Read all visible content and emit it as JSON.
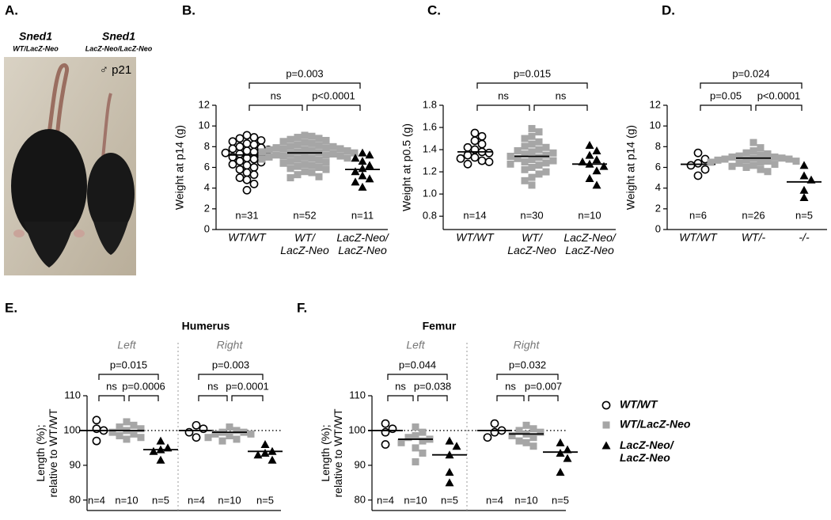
{
  "panel_a": {
    "label": "A.",
    "mice": [
      {
        "gene": "Sned1",
        "genotype": "WT/LacZ-Neo"
      },
      {
        "gene": "Sned1",
        "genotype": "LacZ-Neo/LacZ-Neo"
      }
    ],
    "annotation": "♂ p21"
  },
  "chart_data": [
    {
      "type": "dotplot",
      "panel": "B.",
      "ylabel": "Weight at p14 (g)",
      "ylim": [
        0,
        12
      ],
      "yticks": [
        0,
        2,
        4,
        6,
        8,
        10,
        12
      ],
      "categories": [
        "WT/WT",
        "WT/\nLacZ-Neo",
        "LacZ-Neo/\nLacZ-Neo"
      ],
      "subgroups": [
        {
          "series": [
            {
              "marker": "circle-open",
              "color": "#000000",
              "n_label": "n=31",
              "mean": 7.2,
              "values": [
                9.1,
                8.9,
                8.8,
                8.6,
                8.5,
                8.3,
                8.2,
                8.0,
                7.9,
                7.8,
                7.7,
                7.6,
                7.5,
                7.4,
                7.3,
                7.2,
                7.0,
                6.9,
                6.8,
                6.6,
                6.5,
                6.3,
                6.2,
                6.0,
                5.8,
                5.5,
                5.3,
                5.0,
                4.8,
                4.4,
                3.8
              ]
            },
            {
              "marker": "square",
              "color": "#a6a6a6",
              "n_label": "n=52",
              "mean": 7.4,
              "values": [
                9.1,
                9.0,
                8.9,
                8.8,
                8.7,
                8.6,
                8.5,
                8.4,
                8.3,
                8.2,
                8.1,
                8.0,
                8.0,
                7.9,
                7.9,
                7.8,
                7.8,
                7.7,
                7.7,
                7.6,
                7.6,
                7.5,
                7.5,
                7.4,
                7.4,
                7.3,
                7.3,
                7.2,
                7.2,
                7.1,
                7.1,
                7.0,
                7.0,
                6.9,
                6.9,
                6.8,
                6.8,
                6.7,
                6.6,
                6.5,
                6.4,
                6.3,
                6.2,
                6.1,
                6.0,
                5.9,
                5.8,
                5.6,
                5.5,
                5.3,
                5.1,
                5.0
              ]
            },
            {
              "marker": "triangle",
              "color": "#000000",
              "n_label": "n=11",
              "mean": 5.8,
              "values": [
                7.4,
                7.2,
                6.9,
                6.6,
                6.2,
                5.9,
                5.6,
                5.2,
                4.9,
                4.6,
                4.1
              ]
            }
          ],
          "comparisons": [
            {
              "pair": [
                0,
                1
              ],
              "label": "ns"
            },
            {
              "pair": [
                1,
                2
              ],
              "label": "p<0.0001"
            },
            {
              "pair": [
                0,
                2
              ],
              "label": "p=0.003"
            }
          ]
        }
      ]
    },
    {
      "type": "dotplot",
      "panel": "C.",
      "ylabel": "Weight at p0.5 (g)",
      "ylim": [
        0.68,
        1.8
      ],
      "yticks": [
        0.8,
        {
          "value": 1,
          "label": "1.0"
        },
        1.2,
        1.4,
        1.6,
        1.8
      ],
      "categories": [
        "WT/WT",
        "WT/\nLacZ-Neo",
        "LacZ-Neo/\nLacZ-Neo"
      ],
      "subgroups": [
        {
          "series": [
            {
              "marker": "circle-open",
              "color": "#000000",
              "n_label": "n=14",
              "mean": 1.38,
              "values": [
                1.55,
                1.52,
                1.48,
                1.45,
                1.42,
                1.4,
                1.38,
                1.37,
                1.35,
                1.33,
                1.32,
                1.3,
                1.29,
                1.27
              ]
            },
            {
              "marker": "square",
              "color": "#a6a6a6",
              "n_label": "n=30",
              "mean": 1.34,
              "values": [
                1.59,
                1.56,
                1.52,
                1.5,
                1.47,
                1.45,
                1.43,
                1.42,
                1.4,
                1.39,
                1.38,
                1.37,
                1.36,
                1.35,
                1.34,
                1.33,
                1.32,
                1.31,
                1.3,
                1.29,
                1.28,
                1.27,
                1.26,
                1.24,
                1.22,
                1.2,
                1.18,
                1.15,
                1.12,
                1.08
              ]
            },
            {
              "marker": "triangle",
              "color": "#000000",
              "n_label": "n=10",
              "mean": 1.27,
              "values": [
                1.44,
                1.39,
                1.35,
                1.31,
                1.29,
                1.27,
                1.25,
                1.21,
                1.14,
                1.08
              ]
            }
          ],
          "comparisons": [
            {
              "pair": [
                0,
                1
              ],
              "label": "ns"
            },
            {
              "pair": [
                1,
                2
              ],
              "label": "ns"
            },
            {
              "pair": [
                0,
                2
              ],
              "label": "p=0.015"
            }
          ]
        }
      ]
    },
    {
      "type": "dotplot",
      "panel": "D.",
      "ylabel": "Weight at p14 (g)",
      "ylim": [
        0,
        12
      ],
      "yticks": [
        0,
        2,
        4,
        6,
        8,
        10,
        12
      ],
      "categories": [
        "WT/WT",
        "WT/-",
        "-/-"
      ],
      "subgroups": [
        {
          "series": [
            {
              "marker": "circle-open",
              "color": "#000000",
              "n_label": "n=6",
              "mean": 6.3,
              "values": [
                7.4,
                6.8,
                6.4,
                6.2,
                5.8,
                5.2
              ]
            },
            {
              "marker": "square",
              "color": "#a6a6a6",
              "n_label": "n=26",
              "mean": 6.9,
              "values": [
                8.4,
                7.9,
                7.6,
                7.4,
                7.3,
                7.2,
                7.1,
                7.0,
                7.0,
                6.9,
                6.9,
                6.8,
                6.8,
                6.7,
                6.7,
                6.6,
                6.6,
                6.5,
                6.5,
                6.4,
                6.3,
                6.2,
                6.1,
                6.0,
                5.8,
                5.6
              ]
            },
            {
              "marker": "triangle",
              "color": "#000000",
              "n_label": "n=5",
              "mean": 4.6,
              "values": [
                6.2,
                5.2,
                4.8,
                3.8,
                3.1
              ]
            }
          ],
          "comparisons": [
            {
              "pair": [
                0,
                1
              ],
              "label": "p=0.05"
            },
            {
              "pair": [
                1,
                2
              ],
              "label": "p<0.0001"
            },
            {
              "pair": [
                0,
                2
              ],
              "label": "p=0.024"
            }
          ]
        }
      ]
    },
    {
      "type": "dotplot",
      "panel": "E.",
      "title": "Humerus",
      "ylabel": "Length (%);\nrelative to WT/WT",
      "ylim": [
        77,
        110
      ],
      "yticks": [
        80,
        90,
        100,
        110
      ],
      "reference_line": 100,
      "subgroups": [
        {
          "label": "Left",
          "series": [
            {
              "marker": "circle-open",
              "color": "#000000",
              "n_label": "n=4",
              "mean": 100,
              "values": [
                103,
                100.5,
                100,
                97
              ]
            },
            {
              "marker": "square",
              "color": "#a6a6a6",
              "n_label": "n=10",
              "mean": 100,
              "values": [
                102.5,
                101.5,
                101,
                100.5,
                100,
                99.5,
                99,
                98.5,
                98,
                97.5
              ]
            },
            {
              "marker": "triangle",
              "color": "#000000",
              "n_label": "n=5",
              "mean": 94.5,
              "values": [
                97,
                95,
                94.5,
                94,
                91.5
              ]
            }
          ],
          "comparisons": [
            {
              "pair": [
                0,
                1
              ],
              "label": "ns"
            },
            {
              "pair": [
                1,
                2
              ],
              "label": "p=0.0006"
            },
            {
              "pair": [
                0,
                2
              ],
              "label": "p=0.015"
            }
          ]
        },
        {
          "label": "Right",
          "series": [
            {
              "marker": "circle-open",
              "color": "#000000",
              "n_label": "n=4",
              "mean": 100,
              "values": [
                101.5,
                100.5,
                99.5,
                98
              ]
            },
            {
              "marker": "square",
              "color": "#a6a6a6",
              "n_label": "n=10",
              "mean": 99.5,
              "values": [
                101,
                100,
                99.5,
                99.5,
                99,
                99,
                98.5,
                98,
                97.5,
                97
              ]
            },
            {
              "marker": "triangle",
              "color": "#000000",
              "n_label": "n=5",
              "mean": 94,
              "values": [
                96,
                94,
                93.5,
                93,
                91.5
              ]
            }
          ],
          "comparisons": [
            {
              "pair": [
                0,
                1
              ],
              "label": "ns"
            },
            {
              "pair": [
                1,
                2
              ],
              "label": "p=0.0001"
            },
            {
              "pair": [
                0,
                2
              ],
              "label": "p=0.003"
            }
          ]
        }
      ]
    },
    {
      "type": "dotplot",
      "panel": "F.",
      "title": "Femur",
      "ylabel": "Length (%);\nrelative to WT/WT",
      "ylim": [
        77,
        110
      ],
      "yticks": [
        80,
        90,
        100,
        110
      ],
      "reference_line": 100,
      "subgroups": [
        {
          "label": "Left",
          "series": [
            {
              "marker": "circle-open",
              "color": "#000000",
              "n_label": "n=4",
              "mean": 100,
              "values": [
                102,
                100.5,
                99.5,
                96
              ]
            },
            {
              "marker": "square",
              "color": "#a6a6a6",
              "n_label": "n=10",
              "mean": 97.5,
              "values": [
                101,
                99.5,
                98.5,
                98,
                97.5,
                97,
                96.5,
                95,
                93.5,
                91
              ]
            },
            {
              "marker": "triangle",
              "color": "#000000",
              "n_label": "n=5",
              "mean": 93,
              "values": [
                97,
                95.5,
                93,
                88,
                85
              ]
            }
          ],
          "comparisons": [
            {
              "pair": [
                0,
                1
              ],
              "label": "ns"
            },
            {
              "pair": [
                1,
                2
              ],
              "label": "p=0.038"
            },
            {
              "pair": [
                0,
                2
              ],
              "label": "p=0.044"
            }
          ]
        },
        {
          "label": "Right",
          "series": [
            {
              "marker": "circle-open",
              "color": "#000000",
              "n_label": "n=4",
              "mean": 100,
              "values": [
                102,
                100,
                99.5,
                98
              ]
            },
            {
              "marker": "square",
              "color": "#a6a6a6",
              "n_label": "n=10",
              "mean": 99,
              "values": [
                101.5,
                100.5,
                100,
                99.5,
                99,
                98.5,
                98,
                97,
                96.5,
                95.5
              ]
            },
            {
              "marker": "triangle",
              "color": "#000000",
              "n_label": "n=5",
              "mean": 93.8,
              "values": [
                96.5,
                94.5,
                93.5,
                92,
                88
              ]
            }
          ],
          "comparisons": [
            {
              "pair": [
                0,
                1
              ],
              "label": "ns"
            },
            {
              "pair": [
                1,
                2
              ],
              "label": "p=0.007"
            },
            {
              "pair": [
                0,
                2
              ],
              "label": "p=0.032"
            }
          ]
        }
      ]
    }
  ],
  "legend": {
    "entries": [
      {
        "name": "WT/WT",
        "marker": "circle-open",
        "color": "#000000"
      },
      {
        "name": "WT/LacZ-Neo",
        "marker": "square",
        "color": "#a6a6a6"
      },
      {
        "name": "LacZ-Neo/\nLacZ-Neo",
        "marker": "triangle",
        "color": "#000000"
      }
    ]
  }
}
